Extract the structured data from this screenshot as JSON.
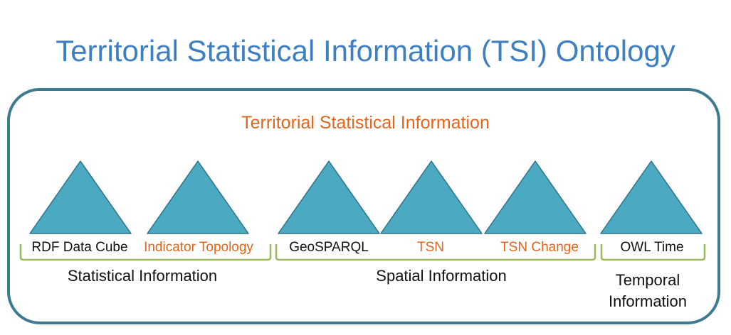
{
  "title": "Territorial Statistical Information (TSI) Ontology",
  "frame_title": "Territorial Statistical Information",
  "colors": {
    "title": "#3E7FC1",
    "accent": "#E0661F",
    "triangle_fill": "#4BA9C2",
    "triangle_stroke": "#2E7389",
    "bracket": "#9BBB59",
    "frame_border": "#3D7A91"
  },
  "ontologies": [
    {
      "label": "RDF Data Cube",
      "color": "black",
      "shape": "triangle"
    },
    {
      "label": "Indicator Topology",
      "color": "orange",
      "shape": "triangle"
    },
    {
      "label": "GeoSPARQL",
      "color": "black",
      "shape": "triangle"
    },
    {
      "label": "TSN",
      "color": "orange",
      "shape": "triangle"
    },
    {
      "label": "TSN Change",
      "color": "orange",
      "shape": "triangle"
    },
    {
      "label": "OWL Time",
      "color": "black",
      "shape": "triangle"
    }
  ],
  "groups": [
    {
      "label_line1": "Statistical Information",
      "label_line2": ""
    },
    {
      "label_line1": "Spatial Information",
      "label_line2": ""
    },
    {
      "label_line1": "Temporal",
      "label_line2": "Information"
    }
  ]
}
